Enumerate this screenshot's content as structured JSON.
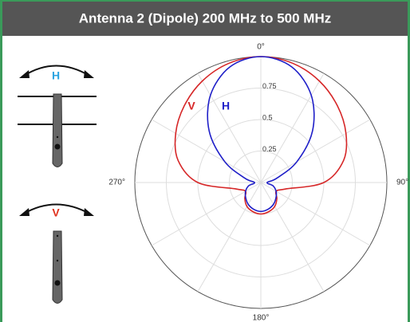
{
  "chart_data": {
    "type": "polar",
    "title": "Antenna 2 (Dipole) 200 MHz to 500 MHz",
    "theta": [
      0,
      15,
      30,
      45,
      60,
      75,
      90,
      105,
      120,
      135,
      150,
      165,
      180,
      195,
      210,
      225,
      240,
      255,
      270,
      285,
      300,
      315,
      330,
      345
    ],
    "series": [
      {
        "name": "V",
        "color": "#d62728",
        "values": [
          1,
          0.98,
          0.93,
          0.86,
          0.78,
          0.68,
          0.5,
          0.2,
          0.14,
          0.18,
          0.22,
          0.24,
          0.25,
          0.24,
          0.22,
          0.18,
          0.14,
          0.2,
          0.5,
          0.68,
          0.78,
          0.86,
          0.93,
          0.98
        ]
      },
      {
        "name": "H",
        "color": "#1f1fc8",
        "values": [
          1,
          0.95,
          0.8,
          0.58,
          0.33,
          0.13,
          0.05,
          0.1,
          0.14,
          0.17,
          0.2,
          0.22,
          0.23,
          0.22,
          0.2,
          0.17,
          0.14,
          0.1,
          0.05,
          0.13,
          0.33,
          0.58,
          0.8,
          0.95
        ]
      }
    ],
    "rlim": [
      0,
      1
    ],
    "rticks": [
      0.25,
      0.5,
      0.75
    ],
    "thetaticks": [
      {
        "value": 0,
        "label": "0°"
      },
      {
        "value": 90,
        "label": "90°"
      },
      {
        "value": 180,
        "label": "180°"
      },
      {
        "value": 270,
        "label": "270°"
      }
    ],
    "theta_grid_step": 30,
    "direction": "clockwise",
    "grid": true
  }
}
